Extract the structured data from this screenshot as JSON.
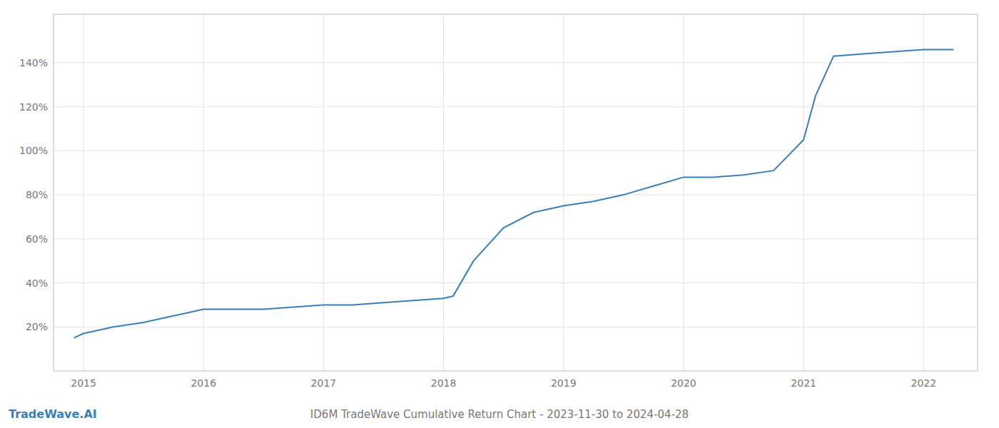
{
  "chart_data": {
    "type": "line",
    "title": "ID6M TradeWave Cumulative Return Chart - 2023-11-30 to 2024-04-28",
    "annotations": [
      "TradeWave.AI"
    ],
    "color": "#3a7fb5",
    "grid": true,
    "x": [
      2014.92,
      2015.0,
      2015.25,
      2015.5,
      2015.75,
      2016.0,
      2016.25,
      2016.5,
      2016.75,
      2017.0,
      2017.25,
      2017.5,
      2017.75,
      2018.0,
      2018.08,
      2018.25,
      2018.5,
      2018.75,
      2019.0,
      2019.25,
      2019.5,
      2019.75,
      2020.0,
      2020.25,
      2020.5,
      2020.75,
      2021.0,
      2021.1,
      2021.25,
      2021.5,
      2021.75,
      2022.0,
      2022.25
    ],
    "values": [
      15,
      17,
      20,
      22,
      25,
      28,
      28,
      28,
      29,
      30,
      30,
      31,
      32,
      33,
      34,
      50,
      65,
      72,
      75,
      77,
      80,
      84,
      88,
      88,
      89,
      91,
      105,
      125,
      143,
      144,
      145,
      146,
      146
    ],
    "xlim": [
      2014.75,
      2022.45
    ],
    "ylim": [
      0,
      162
    ],
    "xticks": [
      2015,
      2016,
      2017,
      2018,
      2019,
      2020,
      2021,
      2022
    ],
    "yticks": [
      {
        "value": 20,
        "label": "20%"
      },
      {
        "value": 40,
        "label": "40%"
      },
      {
        "value": 60,
        "label": "60%"
      },
      {
        "value": 80,
        "label": "80%"
      },
      {
        "value": 100,
        "label": "100%"
      },
      {
        "value": 120,
        "label": "120%"
      },
      {
        "value": 140,
        "label": "140%"
      }
    ]
  }
}
